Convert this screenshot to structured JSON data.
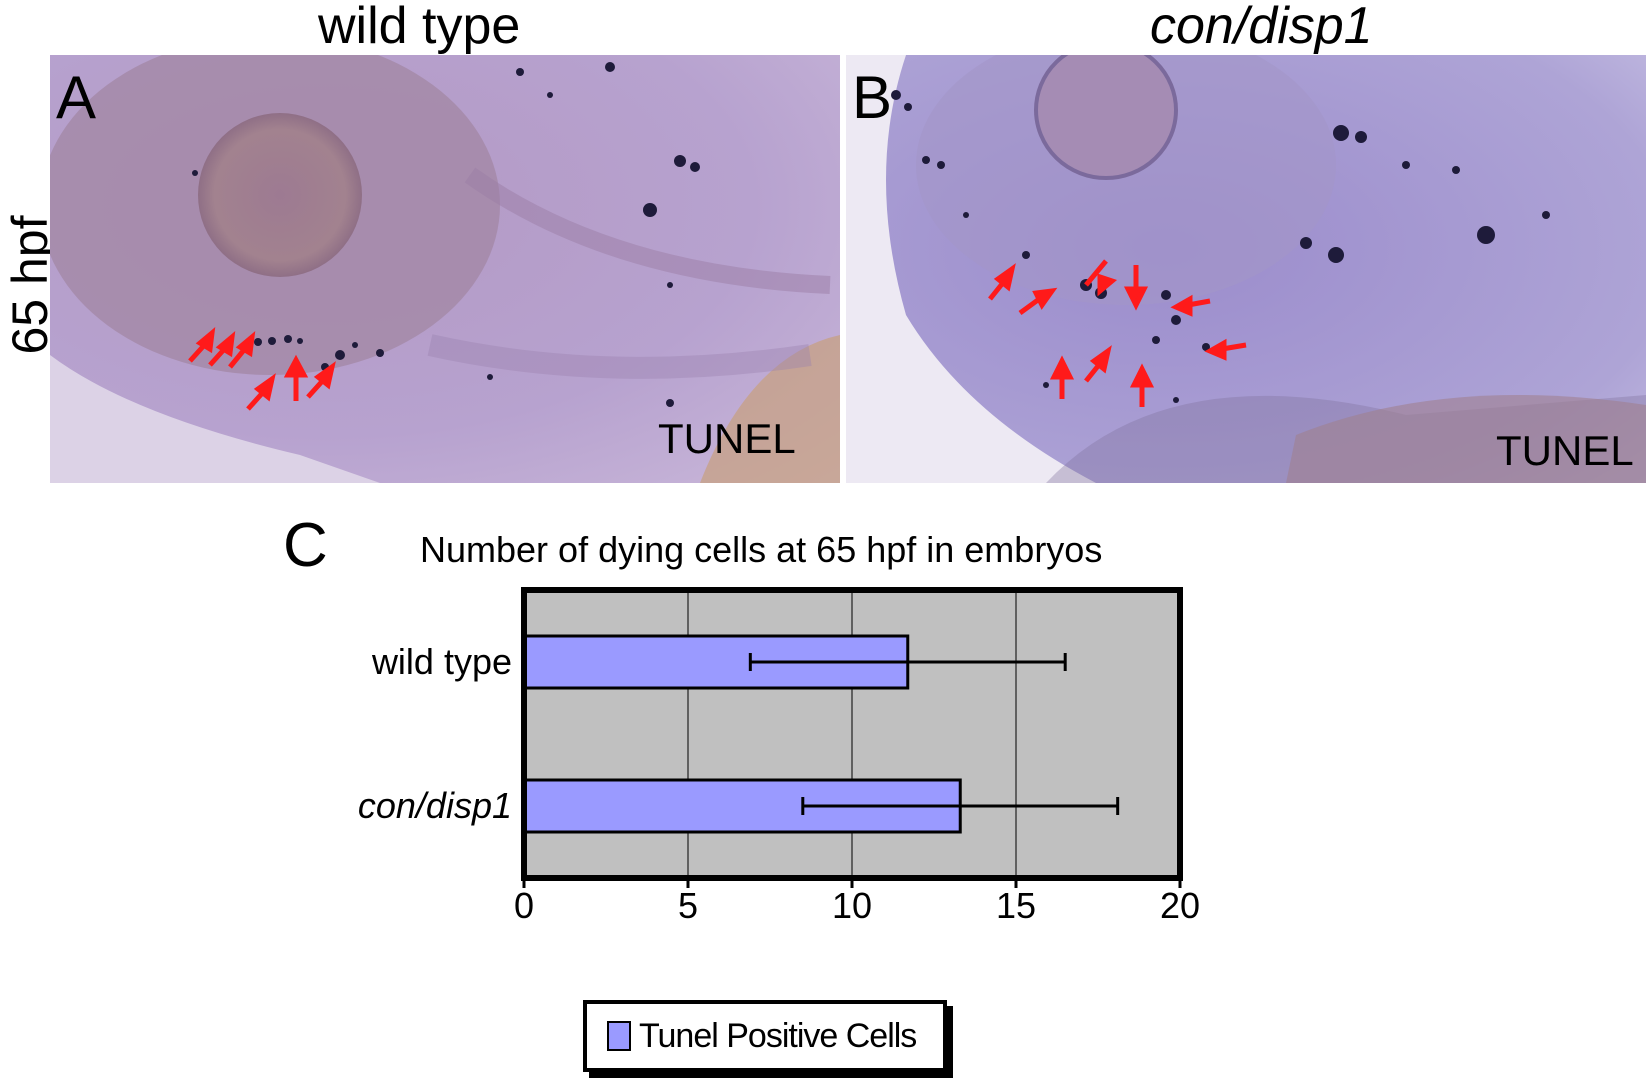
{
  "panels": {
    "a": {
      "title": "wild type",
      "letter": "A",
      "stain": "TUNEL"
    },
    "b": {
      "title": "con/disp1",
      "letter": "B",
      "stain": "TUNEL"
    }
  },
  "side_label": "65 hpf",
  "chart_letter": "C",
  "chart_data": {
    "type": "bar",
    "orientation": "horizontal",
    "title": "Number of dying cells at 65 hpf in embryos",
    "categories": [
      "wild type",
      "con/disp1"
    ],
    "series": [
      {
        "name": "Tunel Positive Cells",
        "values": [
          11.7,
          13.3
        ],
        "errors": [
          4.8,
          4.8
        ]
      }
    ],
    "xlim": [
      0,
      20
    ],
    "xticks": [
      0,
      5,
      10,
      15,
      20
    ],
    "grid": true,
    "legend_position": "bottom"
  },
  "colors": {
    "bar_fill": "#9a9aff",
    "plot_background": "#c0c0c0",
    "arrow": "#ff1a1a",
    "tissue": "#a98ec0"
  }
}
